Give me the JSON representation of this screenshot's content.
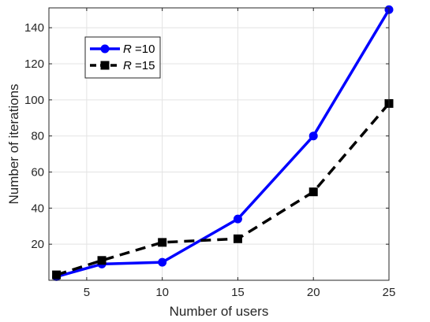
{
  "chart_data": {
    "type": "line",
    "title": "",
    "xlabel": "Number of users",
    "ylabel": "Number of iterations",
    "xlim": [
      2.5,
      25
    ],
    "ylim": [
      0,
      151
    ],
    "x_ticks": [
      5,
      10,
      15,
      20,
      25
    ],
    "y_ticks": [
      20,
      40,
      60,
      80,
      100,
      120,
      140
    ],
    "grid": true,
    "legend_position": "top-left",
    "x": [
      3,
      6,
      10,
      15,
      20,
      25
    ],
    "series": [
      {
        "name": "R =10",
        "name_italic": "R",
        "name_rest": " =10",
        "values": [
          2,
          9,
          10,
          34,
          80,
          150
        ],
        "color": "#0000ff",
        "marker": "circle",
        "line_style": "solid"
      },
      {
        "name": "R =15",
        "name_italic": "R",
        "name_rest": " =15",
        "values": [
          3,
          11,
          21,
          23,
          49,
          98
        ],
        "color": "#000000",
        "marker": "square",
        "line_style": "dashed"
      }
    ]
  }
}
